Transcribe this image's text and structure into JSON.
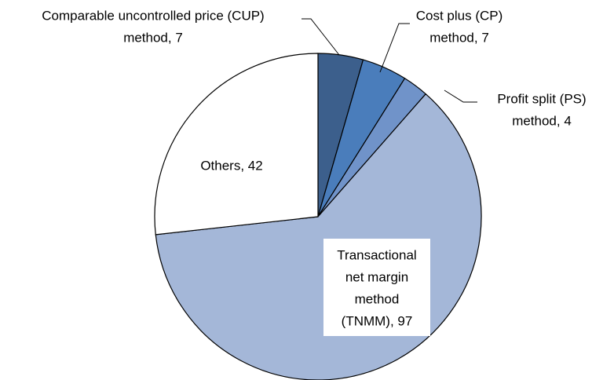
{
  "chart_data": {
    "type": "pie",
    "categories": [
      "Comparable uncontrolled price (CUP) method",
      "Cost plus (CP) method",
      "Profit split (PS) method",
      "Transactional net margin method (TNMM)",
      "Others"
    ],
    "labels": [
      [
        "Comparable uncontrolled price (CUP)",
        "method, 7"
      ],
      [
        "Cost plus (CP)",
        "method, 7"
      ],
      [
        "Profit split (PS)",
        "method, 4"
      ],
      [
        "Transactional",
        "net margin",
        "method",
        "(TNMM), 97"
      ],
      [
        "Others, 42"
      ]
    ],
    "values": [
      7,
      7,
      4,
      97,
      42
    ],
    "colors": [
      "#3c5f8c",
      "#4a7dbb",
      "#7093c9",
      "#a4b7d8",
      "#ffffff"
    ]
  }
}
